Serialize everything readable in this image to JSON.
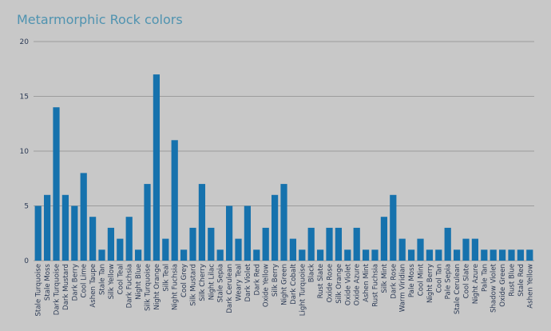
{
  "chart_data": {
    "type": "bar",
    "title": "Metarmorphic Rock colors",
    "xlabel": "",
    "ylabel": "",
    "ylim": [
      0,
      20
    ],
    "yticks": [
      0,
      5,
      10,
      15,
      20
    ],
    "grid": true,
    "bar_color": "#1672ad",
    "background": "#c8c8c8",
    "categories": [
      "Stale Turquoise",
      "Stale Moss",
      "Dark Turquoise",
      "Dark Mustard",
      "Dark Berry",
      "Cool Lime",
      "Ashen Taupe",
      "Stale Tan",
      "Silk Yellow",
      "Cool Teal",
      "Dark Fuchsia",
      "Night Blue",
      "Silk Turquoise",
      "Night Orange",
      "Silk Teal",
      "Night Fuchsia",
      "Cool Grey",
      "Silk Mustard",
      "Silk Cherry",
      "Night Lilac",
      "Stale Sepia",
      "Dark Cerulean",
      "Weary Teal",
      "Dark Violet",
      "Dark Red",
      "Oxide Yellow",
      "Silk Berry",
      "Night Green",
      "Dark Cobalt",
      "Light Turquoise",
      "Black",
      "Rust Slate",
      "Oxide Rose",
      "Silk Orange",
      "Oxide Violet",
      "Oxide Azure",
      "Ashen Mint",
      "Rust Fuchsia",
      "Silk Mint",
      "Dark Rose",
      "Warm Viridian",
      "Pale Moss",
      "Cool Mint",
      "Night Berry",
      "Cool Tan",
      "Pale Sepia",
      "Stale Cerulean",
      "Cool Slate",
      "Night Azure",
      "Pale Tan",
      "Shadow Violet",
      "Oxide Green",
      "Rust Blue",
      "Stale Red",
      "Ashen Yellow"
    ],
    "values": [
      5,
      6,
      14,
      6,
      5,
      8,
      4,
      1,
      3,
      2,
      4,
      1,
      7,
      17,
      2,
      11,
      1,
      3,
      7,
      3,
      1,
      5,
      2,
      5,
      1,
      3,
      6,
      7,
      2,
      1,
      3,
      1,
      3,
      3,
      1,
      3,
      1,
      1,
      4,
      6,
      2,
      1,
      2,
      1,
      1,
      3,
      1,
      2,
      2,
      1,
      1,
      1,
      1,
      1,
      1
    ]
  }
}
